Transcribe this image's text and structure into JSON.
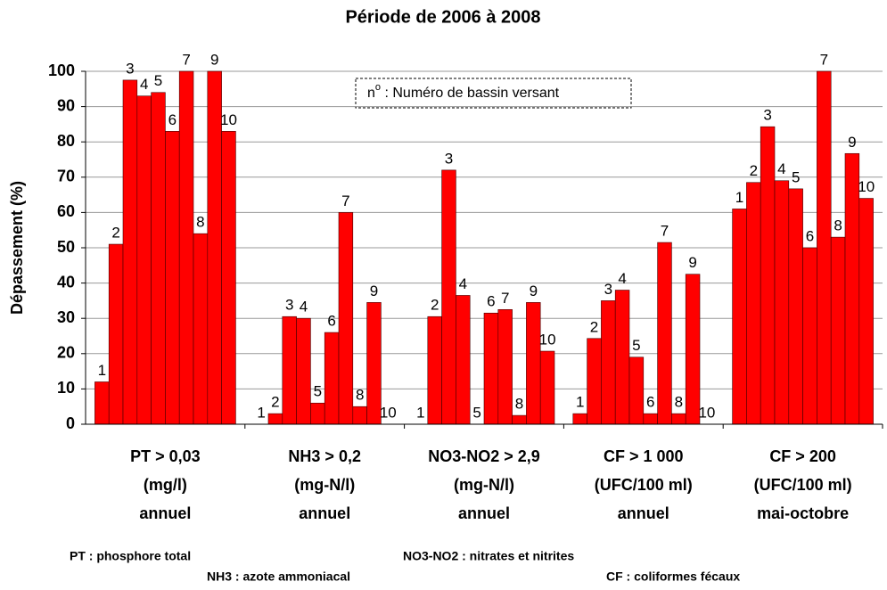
{
  "chart_data": {
    "type": "bar",
    "title": "Période de 2006 à 2008",
    "y_label": "Dépassement (%)",
    "categories": [
      [
        "PT > 0,03",
        "(mg/l)",
        "annuel"
      ],
      [
        "NH3 > 0,2",
        "(mg-N/l)",
        "annuel"
      ],
      [
        "NO3-NO2 > 2,9",
        "(mg-N/l)",
        "annuel"
      ],
      [
        "CF > 1 000",
        "(UFC/100 ml)",
        "annuel"
      ],
      [
        "CF > 200",
        "(UFC/100 ml)",
        "mai-octobre"
      ]
    ],
    "series": [
      {
        "name": "1",
        "color": "#ff0000",
        "values": [
          12,
          0,
          0,
          3,
          61
        ]
      },
      {
        "name": "2",
        "color": "#ff0000",
        "values": [
          51,
          3,
          30.5,
          24.3,
          68.5
        ]
      },
      {
        "name": "3",
        "color": "#ff0000",
        "values": [
          97.5,
          30.5,
          72,
          35,
          84.3
        ]
      },
      {
        "name": "4",
        "color": "#ff0000",
        "values": [
          93,
          30,
          36.5,
          38,
          69
        ]
      },
      {
        "name": "5",
        "color": "#ff0000",
        "values": [
          94,
          6,
          0,
          19,
          66.7
        ]
      },
      {
        "name": "6",
        "color": "#ff0000",
        "values": [
          83,
          26,
          31.5,
          3,
          50
        ]
      },
      {
        "name": "7",
        "color": "#ff0000",
        "values": [
          100,
          60,
          32.5,
          51.5,
          100
        ]
      },
      {
        "name": "8",
        "color": "#ff0000",
        "values": [
          54,
          5,
          2.5,
          3,
          53
        ]
      },
      {
        "name": "9",
        "color": "#ff0000",
        "values": [
          100,
          34.5,
          34.5,
          42.5,
          76.7
        ]
      },
      {
        "name": "10",
        "color": "#ff0000",
        "values": [
          83,
          0,
          20.7,
          0,
          64
        ]
      }
    ],
    "ylim": [
      0,
      100
    ],
    "yticks": [
      0,
      10,
      20,
      30,
      40,
      50,
      60,
      70,
      80,
      90,
      100
    ],
    "grid": true,
    "annotation": {
      "pre": "n",
      "sup": "o",
      "post": " : Numéro de bassin versant"
    },
    "notes": [
      "PT : phosphore total",
      "NO3-NO2 : nitrates et nitrites",
      "NH3 : azote ammoniacal",
      "CF : coliformes fécaux"
    ]
  }
}
